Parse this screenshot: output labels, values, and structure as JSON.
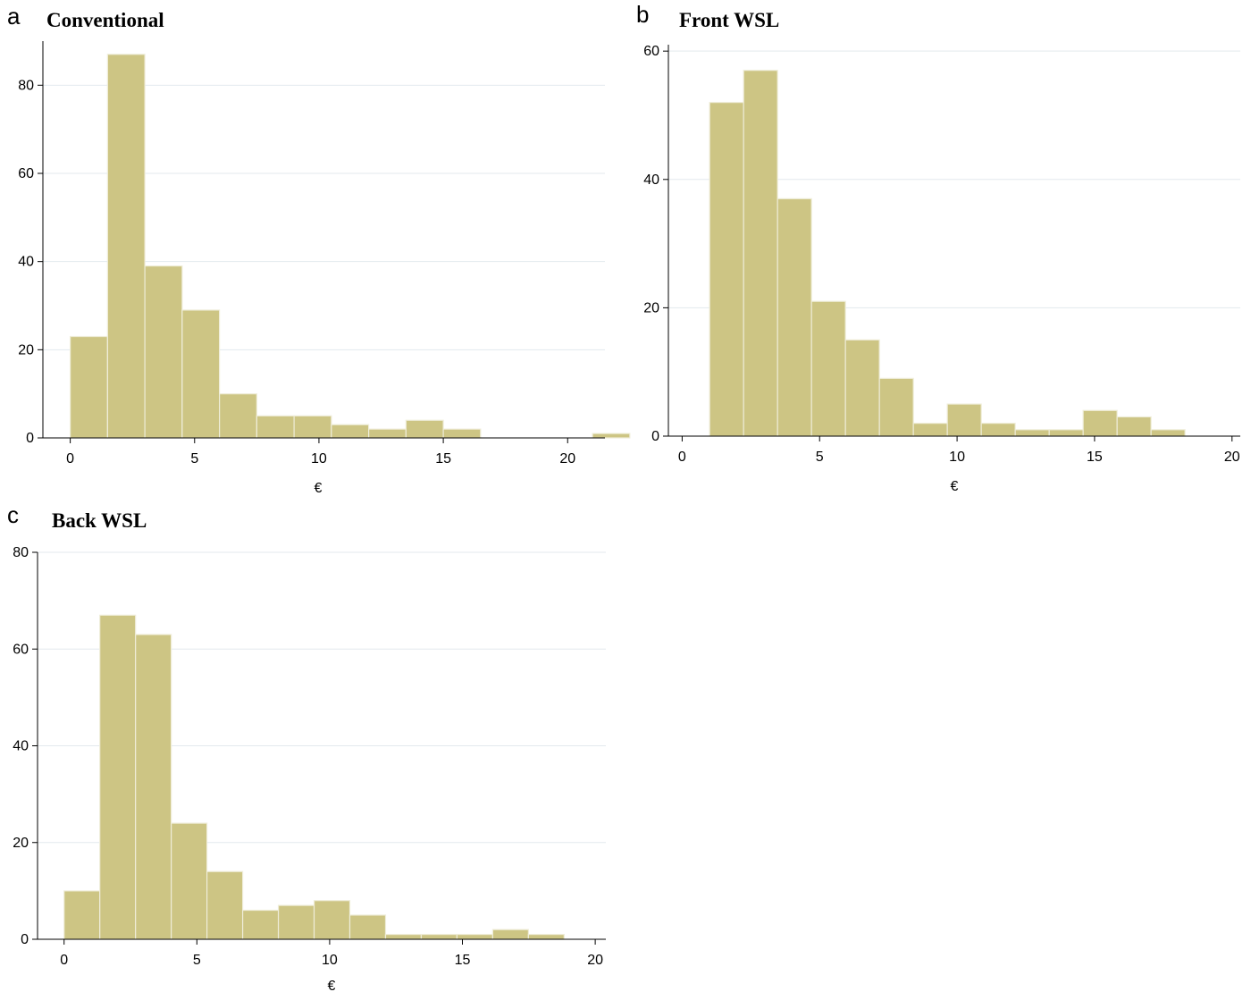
{
  "chart_data": [
    {
      "id": "a",
      "type": "bar",
      "panel_label": "a",
      "title": "Conventional",
      "xlabel": "€",
      "ylabel": "",
      "xlim": [
        -1.1,
        21.5
      ],
      "ylim": [
        0,
        90
      ],
      "xticks": [
        0,
        5,
        10,
        15,
        20
      ],
      "yticks": [
        0,
        20,
        40,
        60,
        80
      ],
      "grid": true,
      "bin_start": 0,
      "bin_width": 1.5,
      "values": [
        23,
        87,
        39,
        29,
        10,
        5,
        5,
        3,
        2,
        4,
        2,
        0,
        0,
        0,
        1
      ]
    },
    {
      "id": "b",
      "type": "bar",
      "panel_label": "b",
      "title": "Front WSL",
      "xlabel": "€",
      "ylabel": "",
      "xlim": [
        -0.5,
        20.3
      ],
      "ylim": [
        0,
        61
      ],
      "xticks": [
        0,
        5,
        10,
        15,
        20
      ],
      "yticks": [
        0,
        20,
        40,
        60
      ],
      "grid": true,
      "bin_start": 1,
      "bin_width": 1.235,
      "values": [
        52,
        57,
        37,
        21,
        15,
        9,
        2,
        5,
        2,
        1,
        1,
        4,
        3,
        1
      ]
    },
    {
      "id": "c",
      "type": "bar",
      "panel_label": "c",
      "title": "Back WSL",
      "xlabel": "€",
      "ylabel": "",
      "xlim": [
        -1.0,
        20.4
      ],
      "ylim": [
        0,
        80
      ],
      "xticks": [
        0,
        5,
        10,
        15,
        20
      ],
      "yticks": [
        0,
        20,
        40,
        60,
        80
      ],
      "grid": true,
      "bin_start": 0,
      "bin_width": 1.345,
      "values": [
        10,
        67,
        63,
        24,
        14,
        6,
        7,
        8,
        5,
        1,
        1,
        1,
        2,
        1
      ]
    }
  ]
}
